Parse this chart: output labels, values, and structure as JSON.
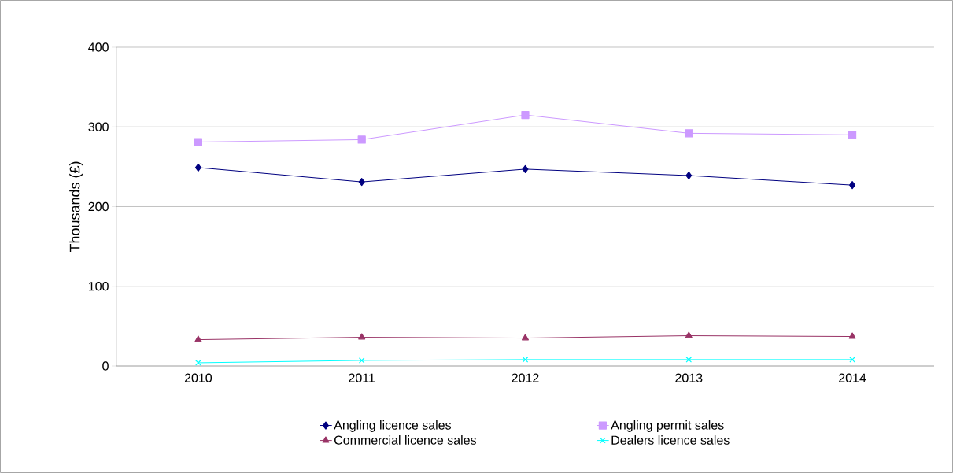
{
  "chart_data": {
    "type": "line",
    "ylabel": "Thousands (£)",
    "categories": [
      "2010",
      "2011",
      "2012",
      "2013",
      "2014"
    ],
    "ylim": [
      0,
      400
    ],
    "yticks": [
      0,
      100,
      200,
      300,
      400
    ],
    "grid": "y",
    "legend": "bottom",
    "series": [
      {
        "name": "Angling licence sales",
        "color": "#000080",
        "marker": "diamond",
        "values": [
          249,
          231,
          247,
          239,
          227
        ]
      },
      {
        "name": "Angling permit sales",
        "color": "#cc99ff",
        "marker": "square",
        "values": [
          281,
          284,
          315,
          292,
          290
        ]
      },
      {
        "name": "Commercial licence sales",
        "color": "#993366",
        "marker": "triangle",
        "values": [
          33,
          36,
          35,
          38,
          37
        ]
      },
      {
        "name": "Dealers licence sales",
        "color": "#00ffff",
        "marker": "cross",
        "values": [
          4,
          7,
          8,
          8,
          8
        ]
      }
    ]
  }
}
